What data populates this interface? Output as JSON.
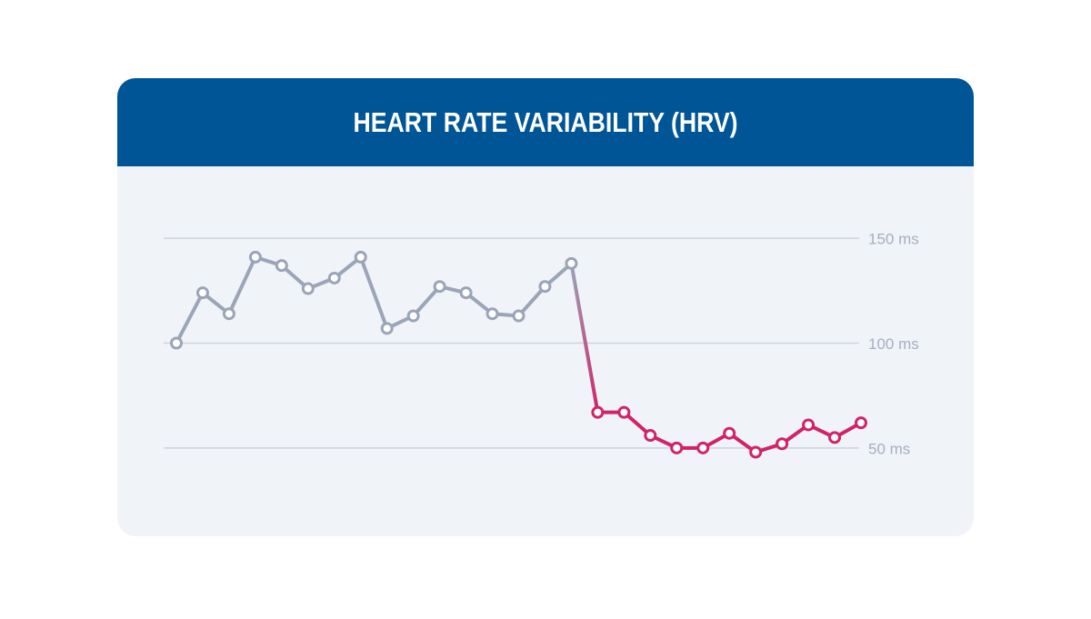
{
  "chart_data": {
    "type": "line",
    "title": "HEART RATE VARIABILITY (HRV)",
    "categories": [
      null,
      null,
      null,
      null,
      null,
      null,
      null,
      null,
      null,
      null,
      null,
      null,
      null,
      null,
      null,
      null,
      null,
      null,
      null,
      null,
      null,
      null,
      null,
      null,
      null,
      null,
      null
    ],
    "series": [
      {
        "color": "#9aa5b8",
        "values": [
          100,
          124,
          114,
          141,
          137,
          126,
          131,
          141,
          107,
          113,
          127,
          124,
          114,
          113,
          127,
          138,
          null,
          null,
          null,
          null,
          null,
          null,
          null,
          null,
          null,
          null,
          null
        ]
      },
      {
        "color": "#d0236a",
        "values": [
          null,
          null,
          null,
          null,
          null,
          null,
          null,
          null,
          null,
          null,
          null,
          null,
          null,
          null,
          null,
          null,
          67,
          67,
          56,
          50,
          50,
          57,
          48,
          52,
          61,
          55,
          62
        ]
      }
    ],
    "ylim": [
      30,
      170
    ],
    "yticks": [
      {
        "value": 50,
        "label": "50 ms"
      },
      {
        "value": 100,
        "label": "100 ms"
      },
      {
        "value": 150,
        "label": "150 ms"
      }
    ],
    "grid": true
  }
}
